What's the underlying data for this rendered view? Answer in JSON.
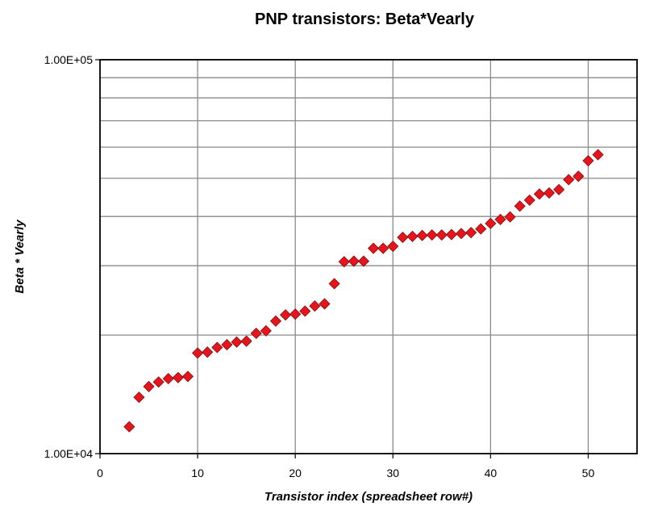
{
  "chart_data": {
    "type": "scatter",
    "title": "PNP transistors:  Beta*Vearly",
    "xlabel": "Transistor index (spreadsheet row#)",
    "ylabel": "Beta * Vearly",
    "xlim": [
      0,
      55
    ],
    "ylim": [
      10000,
      100000
    ],
    "y_scale": "log",
    "x_ticks": [
      0,
      10,
      20,
      30,
      40,
      50
    ],
    "x_tick_labels": [
      "0",
      "10",
      "20",
      "30",
      "40",
      "50"
    ],
    "y_ticks": [
      10000,
      100000
    ],
    "y_tick_labels": [
      "1.00E+04",
      "1.00E+05"
    ],
    "y_gridlines": [
      20000,
      30000,
      40000,
      50000,
      60000,
      70000,
      80000,
      90000,
      100000
    ],
    "x_gridlines": [
      10,
      20,
      30,
      40,
      50
    ],
    "grid": true,
    "legend": false,
    "marker": "diamond",
    "marker_color": "#e8141c",
    "series": [
      {
        "x": [
          3,
          4,
          5,
          6,
          7,
          8,
          9,
          10,
          11,
          12,
          13,
          14,
          15,
          16,
          17,
          18,
          19,
          20,
          21,
          22,
          23,
          24,
          25,
          26,
          27,
          28,
          29,
          30,
          31,
          32,
          33,
          34,
          35,
          36,
          37,
          38,
          39,
          40,
          41,
          42,
          43,
          44,
          45,
          46,
          47,
          48,
          49,
          50,
          51
        ],
        "y": [
          11700,
          13900,
          14800,
          15200,
          15500,
          15600,
          15700,
          18000,
          18100,
          18600,
          18900,
          19200,
          19300,
          20200,
          20500,
          21700,
          22500,
          22600,
          23000,
          23700,
          24000,
          27000,
          30700,
          30800,
          30800,
          33200,
          33200,
          33600,
          35400,
          35600,
          35800,
          35900,
          35900,
          36000,
          36200,
          36400,
          37200,
          38400,
          39300,
          39900,
          42500,
          44000,
          45600,
          45900,
          46800,
          49600,
          50600,
          55400,
          57400
        ]
      }
    ]
  }
}
